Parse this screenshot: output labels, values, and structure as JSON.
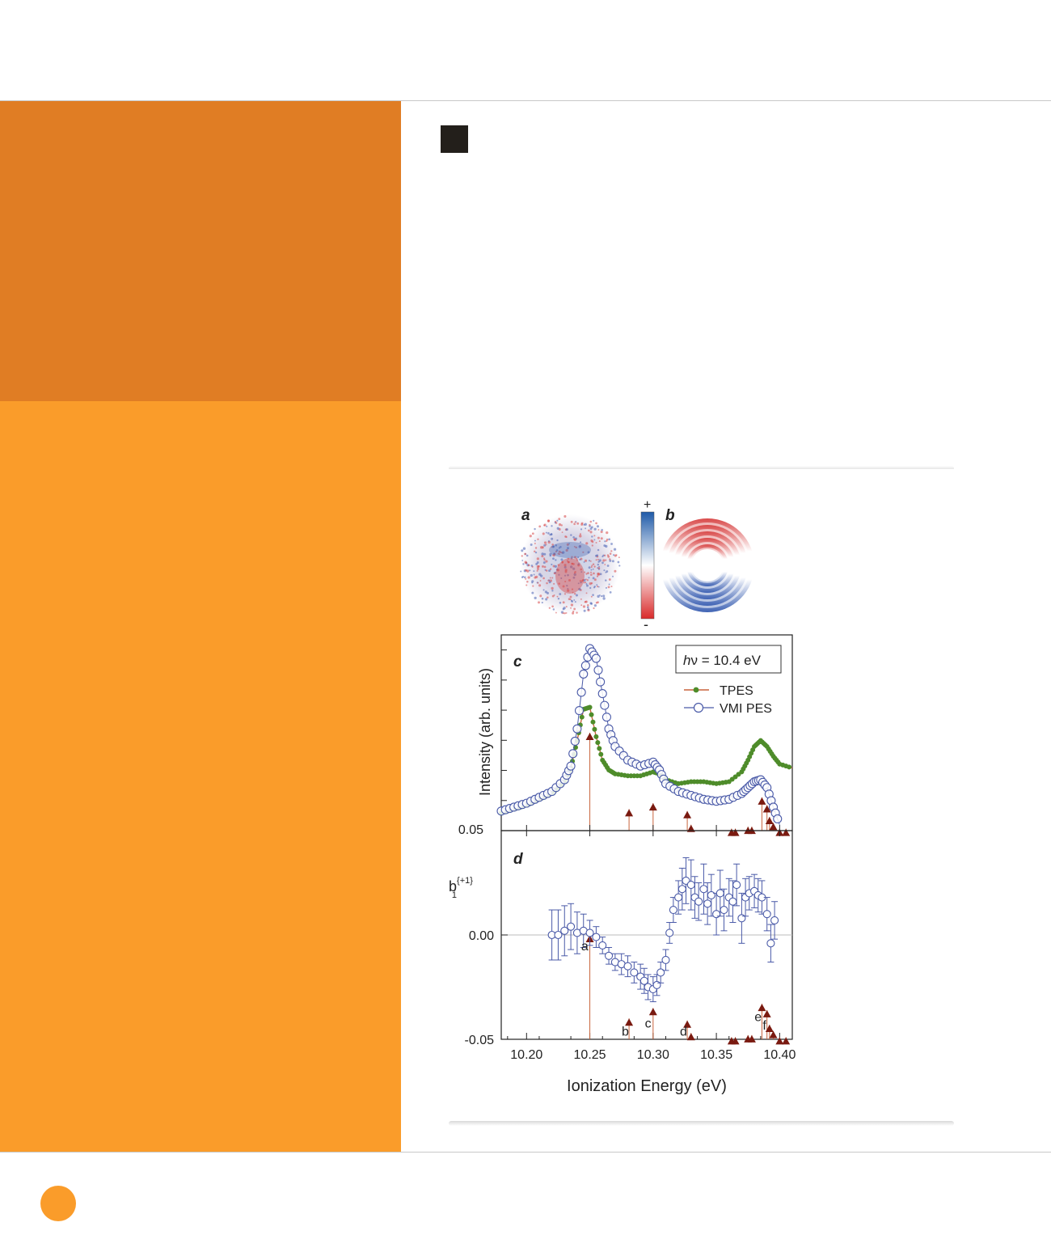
{
  "page": {
    "colors": {
      "sidebar_top": "#e07d24",
      "sidebar_bottom": "#fa9c2a",
      "square": "#231f1b",
      "dot": "#fa9c2a"
    }
  },
  "figure": {
    "panel_a_label": "a",
    "panel_b_label": "b",
    "colorbar_plus": "+",
    "colorbar_minus": "-",
    "panel_c_label": "c",
    "panel_d_label": "d",
    "photon_energy_label": "hν = 10.4 eV",
    "photon_h": "h",
    "photon_rest": "ν = 10.4 eV",
    "legend": {
      "tpes": "TPES",
      "vmi": "VMI PES"
    },
    "colors": {
      "tpes": "#4e8c2a",
      "tpes_line": "#c8643c",
      "vmi": "#4a5aa8",
      "arrow": "#7a1a10",
      "colorbar_pos": "#1f5aa8",
      "colorbar_neg": "#d92a2a"
    }
  },
  "chart_data": [
    {
      "type": "line",
      "panel": "c",
      "xlabel": "Ionization Energy (eV)",
      "ylabel": "Intensity (arb. units)",
      "xlim": [
        10.18,
        10.41
      ],
      "ylim": [
        0,
        1.0
      ],
      "ytick_label_bottom": "0.05",
      "legend_position": "top-right",
      "series": [
        {
          "name": "TPES",
          "marker": "filled-circle",
          "x": [
            10.18,
            10.19,
            10.2,
            10.21,
            10.22,
            10.23,
            10.235,
            10.24,
            10.245,
            10.25,
            10.255,
            10.26,
            10.265,
            10.27,
            10.28,
            10.29,
            10.3,
            10.305,
            10.31,
            10.32,
            10.33,
            10.34,
            10.35,
            10.36,
            10.37,
            10.375,
            10.38,
            10.385,
            10.39,
            10.395,
            10.4,
            10.41
          ],
          "y": [
            0.09,
            0.11,
            0.13,
            0.16,
            0.19,
            0.25,
            0.32,
            0.46,
            0.62,
            0.63,
            0.48,
            0.36,
            0.31,
            0.29,
            0.28,
            0.28,
            0.3,
            0.29,
            0.26,
            0.24,
            0.25,
            0.25,
            0.24,
            0.25,
            0.3,
            0.36,
            0.43,
            0.46,
            0.43,
            0.38,
            0.34,
            0.32
          ]
        },
        {
          "name": "VMI PES",
          "marker": "open-circle",
          "x": [
            10.18,
            10.19,
            10.2,
            10.21,
            10.22,
            10.23,
            10.235,
            10.24,
            10.245,
            10.25,
            10.255,
            10.26,
            10.265,
            10.27,
            10.28,
            10.29,
            10.3,
            10.305,
            10.31,
            10.32,
            10.33,
            10.34,
            10.35,
            10.36,
            10.37,
            10.375,
            10.38,
            10.385,
            10.39,
            10.395,
            10.4
          ],
          "y": [
            0.1,
            0.12,
            0.14,
            0.17,
            0.2,
            0.26,
            0.33,
            0.52,
            0.8,
            0.93,
            0.88,
            0.7,
            0.52,
            0.43,
            0.36,
            0.33,
            0.35,
            0.31,
            0.24,
            0.2,
            0.18,
            0.16,
            0.15,
            0.16,
            0.19,
            0.22,
            0.25,
            0.26,
            0.22,
            0.12,
            0.03
          ]
        }
      ],
      "transitions": {
        "x": [
          10.25,
          10.281,
          10.3,
          10.327,
          10.33,
          10.362,
          10.365,
          10.375,
          10.378,
          10.386,
          10.39,
          10.392,
          10.395,
          10.4,
          10.405
        ],
        "height": [
          0.5,
          0.11,
          0.14,
          0.1,
          0.03,
          0.01,
          0.01,
          0.02,
          0.02,
          0.17,
          0.13,
          0.07,
          0.04,
          0.01,
          0.01
        ]
      }
    },
    {
      "type": "scatter",
      "panel": "d",
      "xlabel": "Ionization Energy (eV)",
      "ylabel": "b1{+1}",
      "ylabel_main": "b",
      "ylabel_sub": "1",
      "ylabel_sup": "{+1}",
      "xlim": [
        10.18,
        10.41
      ],
      "ylim": [
        -0.05,
        0.05
      ],
      "xticks": [
        10.2,
        10.25,
        10.3,
        10.35,
        10.4
      ],
      "xtick_labels": [
        "10.20",
        "10.25",
        "10.30",
        "10.35",
        "10.40"
      ],
      "yticks": [
        0.0,
        -0.05
      ],
      "ytick_labels": [
        "0.00",
        "-0.05"
      ],
      "series": [
        {
          "name": "VMI PES",
          "marker": "open-circle",
          "x": [
            10.22,
            10.225,
            10.23,
            10.235,
            10.24,
            10.245,
            10.25,
            10.255,
            10.26,
            10.265,
            10.27,
            10.275,
            10.28,
            10.285,
            10.29,
            10.293,
            10.296,
            10.3,
            10.303,
            10.306,
            10.31,
            10.313,
            10.316,
            10.32,
            10.323,
            10.326,
            10.33,
            10.333,
            10.336,
            10.34,
            10.343,
            10.346,
            10.35,
            10.353,
            10.356,
            10.36,
            10.363,
            10.366,
            10.37,
            10.373,
            10.376,
            10.38,
            10.383,
            10.386,
            10.39,
            10.393,
            10.396
          ],
          "y": [
            0.0,
            0.0,
            0.002,
            0.004,
            0.001,
            0.002,
            0.001,
            -0.001,
            -0.005,
            -0.01,
            -0.013,
            -0.014,
            -0.015,
            -0.018,
            -0.02,
            -0.022,
            -0.025,
            -0.026,
            -0.024,
            -0.018,
            -0.012,
            0.001,
            0.012,
            0.018,
            0.022,
            0.026,
            0.024,
            0.018,
            0.016,
            0.022,
            0.015,
            0.019,
            0.01,
            0.02,
            0.012,
            0.018,
            0.016,
            0.024,
            0.008,
            0.018,
            0.02,
            0.021,
            0.019,
            0.018,
            0.01,
            -0.004,
            0.007
          ],
          "err": [
            0.012,
            0.012,
            0.012,
            0.011,
            0.01,
            0.008,
            0.006,
            0.005,
            0.004,
            0.004,
            0.004,
            0.005,
            0.005,
            0.005,
            0.006,
            0.006,
            0.006,
            0.006,
            0.005,
            0.005,
            0.005,
            0.005,
            0.006,
            0.008,
            0.01,
            0.011,
            0.012,
            0.01,
            0.009,
            0.012,
            0.01,
            0.01,
            0.01,
            0.011,
            0.01,
            0.009,
            0.01,
            0.01,
            0.012,
            0.009,
            0.008,
            0.008,
            0.008,
            0.008,
            0.008,
            0.009,
            0.009
          ]
        }
      ],
      "transition_labels": [
        {
          "label": "a",
          "x": 10.246,
          "y": -0.005
        },
        {
          "label": "b",
          "x": 10.278,
          "y": -0.046
        },
        {
          "label": "c",
          "x": 10.296,
          "y": -0.042
        },
        {
          "label": "d",
          "x": 10.324,
          "y": -0.046
        },
        {
          "label": "e",
          "x": 10.383,
          "y": -0.039
        },
        {
          "label": "f",
          "x": 10.388,
          "y": -0.043
        }
      ],
      "transitions": {
        "x": [
          10.25,
          10.281,
          10.3,
          10.327,
          10.33,
          10.362,
          10.365,
          10.375,
          10.378,
          10.386,
          10.39,
          10.392,
          10.395,
          10.4,
          10.405
        ],
        "y": [
          0.0,
          -0.04,
          -0.035,
          -0.041,
          -0.047,
          -0.049,
          -0.049,
          -0.048,
          -0.048,
          -0.033,
          -0.036,
          -0.043,
          -0.046,
          -0.049,
          -0.049
        ]
      }
    }
  ]
}
